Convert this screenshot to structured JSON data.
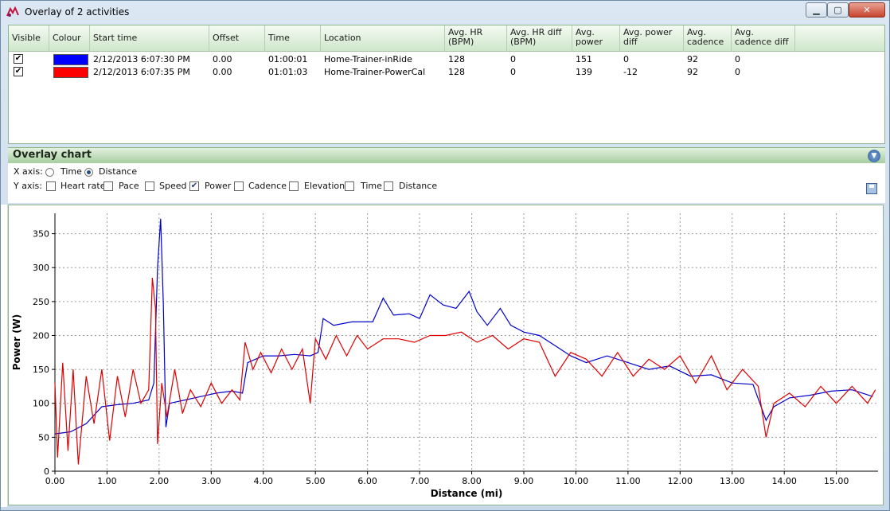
{
  "window": {
    "title": "Overlay of 2 activities",
    "min_label": "▁",
    "max_label": "▢",
    "close_label": "✕"
  },
  "grid": {
    "columns": [
      {
        "label": "Visible"
      },
      {
        "label": "Colour"
      },
      {
        "label": "Start time"
      },
      {
        "label": "Offset"
      },
      {
        "label": "Time"
      },
      {
        "label": "Location"
      },
      {
        "label": "Avg. HR (BPM)"
      },
      {
        "label": "Avg. HR diff (BPM)"
      },
      {
        "label": "Avg. power"
      },
      {
        "label": "Avg. power diff"
      },
      {
        "label": "Avg. cadence"
      },
      {
        "label": "Avg. cadence diff"
      }
    ],
    "rows": [
      {
        "visible": true,
        "color": "#0000ff",
        "start_time": "2/12/2013 6:07:30 PM",
        "offset": "0.00",
        "time": "01:00:01",
        "location": "Home-Trainer-inRide",
        "avg_hr": "128",
        "avg_hr_diff": "0",
        "avg_power": "151",
        "avg_power_diff": "0",
        "avg_cadence": "92",
        "avg_cadence_diff": "0"
      },
      {
        "visible": true,
        "color": "#ff0000",
        "start_time": "2/12/2013 6:07:35 PM",
        "offset": "0.00",
        "time": "01:01:03",
        "location": "Home-Trainer-PowerCal",
        "avg_hr": "128",
        "avg_hr_diff": "0",
        "avg_power": "139",
        "avg_power_diff": "-12",
        "avg_cadence": "92",
        "avg_cadence_diff": "0"
      }
    ]
  },
  "overlay": {
    "title": "Overlay chart",
    "x_axis_label": "X axis:",
    "x_options": [
      {
        "label": "Time",
        "selected": false
      },
      {
        "label": "Distance",
        "selected": true
      }
    ],
    "y_axis_label": "Y axis:",
    "y_options": [
      {
        "label": "Heart rate",
        "checked": false
      },
      {
        "label": "Pace",
        "checked": false
      },
      {
        "label": "Speed",
        "checked": false
      },
      {
        "label": "Power",
        "checked": true
      },
      {
        "label": "Cadence",
        "checked": false
      },
      {
        "label": "Elevation",
        "checked": false
      },
      {
        "label": "Time",
        "checked": false
      },
      {
        "label": "Distance",
        "checked": false
      }
    ]
  },
  "chart_data": {
    "type": "line",
    "xlabel": "Distance (mi)",
    "ylabel": "Power (W)",
    "xlim": [
      0,
      15.8
    ],
    "ylim": [
      0,
      380
    ],
    "x_ticks": [
      "0.00",
      "1.00",
      "2.00",
      "3.00",
      "4.00",
      "5.00",
      "6.00",
      "7.00",
      "8.00",
      "9.00",
      "10.00",
      "11.00",
      "12.00",
      "13.00",
      "14.00",
      "15.00"
    ],
    "y_ticks": [
      "0",
      "50",
      "100",
      "150",
      "200",
      "250",
      "300",
      "350"
    ],
    "grid": true,
    "series": [
      {
        "color": "#0000cc",
        "points": [
          [
            0,
            55
          ],
          [
            0.3,
            58
          ],
          [
            0.6,
            70
          ],
          [
            0.9,
            95
          ],
          [
            1.2,
            98
          ],
          [
            1.5,
            100
          ],
          [
            1.8,
            105
          ],
          [
            1.9,
            130
          ],
          [
            1.97,
            300
          ],
          [
            2.03,
            372
          ],
          [
            2.08,
            250
          ],
          [
            2.13,
            65
          ],
          [
            2.2,
            100
          ],
          [
            2.5,
            105
          ],
          [
            2.8,
            110
          ],
          [
            3.1,
            115
          ],
          [
            3.4,
            118
          ],
          [
            3.6,
            115
          ],
          [
            3.7,
            160
          ],
          [
            4.0,
            170
          ],
          [
            4.3,
            170
          ],
          [
            4.6,
            172
          ],
          [
            4.9,
            170
          ],
          [
            5.05,
            175
          ],
          [
            5.15,
            225
          ],
          [
            5.35,
            215
          ],
          [
            5.7,
            220
          ],
          [
            6.1,
            220
          ],
          [
            6.3,
            255
          ],
          [
            6.5,
            230
          ],
          [
            6.8,
            232
          ],
          [
            7.0,
            225
          ],
          [
            7.2,
            260
          ],
          [
            7.45,
            245
          ],
          [
            7.7,
            240
          ],
          [
            7.95,
            265
          ],
          [
            8.1,
            235
          ],
          [
            8.3,
            215
          ],
          [
            8.55,
            240
          ],
          [
            8.75,
            215
          ],
          [
            9.0,
            205
          ],
          [
            9.3,
            200
          ],
          [
            9.6,
            185
          ],
          [
            9.9,
            170
          ],
          [
            10.2,
            160
          ],
          [
            10.6,
            170
          ],
          [
            11.0,
            160
          ],
          [
            11.4,
            150
          ],
          [
            11.8,
            155
          ],
          [
            12.2,
            140
          ],
          [
            12.6,
            142
          ],
          [
            13.0,
            130
          ],
          [
            13.4,
            128
          ],
          [
            13.65,
            75
          ],
          [
            13.8,
            95
          ],
          [
            14.1,
            108
          ],
          [
            14.5,
            112
          ],
          [
            14.9,
            118
          ],
          [
            15.3,
            120
          ],
          [
            15.7,
            110
          ]
        ]
      },
      {
        "color": "#dd0000",
        "points": [
          [
            0,
            130
          ],
          [
            0.05,
            20
          ],
          [
            0.15,
            160
          ],
          [
            0.25,
            30
          ],
          [
            0.35,
            150
          ],
          [
            0.45,
            10
          ],
          [
            0.6,
            140
          ],
          [
            0.75,
            70
          ],
          [
            0.9,
            150
          ],
          [
            1.05,
            45
          ],
          [
            1.2,
            140
          ],
          [
            1.35,
            80
          ],
          [
            1.5,
            150
          ],
          [
            1.65,
            100
          ],
          [
            1.8,
            120
          ],
          [
            1.87,
            285
          ],
          [
            1.93,
            240
          ],
          [
            1.97,
            40
          ],
          [
            2.05,
            130
          ],
          [
            2.15,
            80
          ],
          [
            2.3,
            150
          ],
          [
            2.45,
            85
          ],
          [
            2.6,
            120
          ],
          [
            2.8,
            95
          ],
          [
            3.0,
            130
          ],
          [
            3.2,
            100
          ],
          [
            3.4,
            120
          ],
          [
            3.55,
            105
          ],
          [
            3.65,
            190
          ],
          [
            3.8,
            150
          ],
          [
            3.95,
            175
          ],
          [
            4.15,
            145
          ],
          [
            4.35,
            180
          ],
          [
            4.55,
            150
          ],
          [
            4.75,
            180
          ],
          [
            4.9,
            100
          ],
          [
            5.0,
            195
          ],
          [
            5.2,
            165
          ],
          [
            5.4,
            200
          ],
          [
            5.6,
            170
          ],
          [
            5.8,
            200
          ],
          [
            6.0,
            180
          ],
          [
            6.3,
            195
          ],
          [
            6.6,
            195
          ],
          [
            6.9,
            190
          ],
          [
            7.2,
            200
          ],
          [
            7.5,
            200
          ],
          [
            7.8,
            205
          ],
          [
            8.1,
            190
          ],
          [
            8.4,
            200
          ],
          [
            8.7,
            180
          ],
          [
            9.0,
            195
          ],
          [
            9.3,
            190
          ],
          [
            9.6,
            140
          ],
          [
            9.9,
            175
          ],
          [
            10.2,
            165
          ],
          [
            10.5,
            140
          ],
          [
            10.8,
            175
          ],
          [
            11.1,
            140
          ],
          [
            11.4,
            165
          ],
          [
            11.7,
            150
          ],
          [
            12.0,
            170
          ],
          [
            12.3,
            130
          ],
          [
            12.6,
            170
          ],
          [
            12.9,
            120
          ],
          [
            13.2,
            150
          ],
          [
            13.5,
            125
          ],
          [
            13.65,
            50
          ],
          [
            13.8,
            100
          ],
          [
            14.1,
            115
          ],
          [
            14.4,
            95
          ],
          [
            14.7,
            125
          ],
          [
            15.0,
            100
          ],
          [
            15.3,
            125
          ],
          [
            15.6,
            100
          ],
          [
            15.75,
            120
          ]
        ]
      }
    ]
  }
}
